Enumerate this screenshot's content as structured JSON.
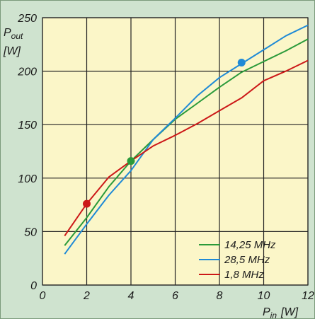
{
  "chart_data": {
    "type": "line",
    "ylabel": {
      "base": "P",
      "sub": "out",
      "unit": "[W]"
    },
    "xlabel": {
      "base": "P",
      "sub": "in",
      "unit": "[W]"
    },
    "xlim": [
      0,
      12
    ],
    "ylim": [
      0,
      250
    ],
    "xticks": [
      0,
      2,
      4,
      6,
      8,
      10,
      12
    ],
    "yticks": [
      0,
      50,
      100,
      150,
      200,
      250
    ],
    "xgrid": [
      0,
      2,
      4,
      6,
      8,
      10,
      12
    ],
    "ygrid": [
      0,
      50,
      100,
      150,
      200,
      250
    ],
    "grid": true,
    "legend_position": "bottom-right",
    "background": "#fbf6c8",
    "series": [
      {
        "name": "14,25 MHz",
        "color": "#2a9a3a",
        "x": [
          1,
          2,
          3,
          4,
          5,
          6,
          7,
          8,
          9,
          10,
          11,
          12
        ],
        "y": [
          37,
          63,
          92,
          116,
          136,
          155,
          170,
          185,
          199,
          209,
          219,
          230
        ],
        "marker": {
          "x": 4,
          "y": 116
        }
      },
      {
        "name": "28,5 MHz",
        "color": "#1f8ad6",
        "x": [
          1,
          2,
          3,
          4,
          5,
          6,
          7,
          8,
          9,
          10,
          11,
          12
        ],
        "y": [
          29,
          57,
          84,
          107,
          136,
          156,
          177,
          194,
          207,
          220,
          233,
          243
        ],
        "marker": {
          "x": 9,
          "y": 208
        }
      },
      {
        "name": "1,8 MHz",
        "color": "#cc1818",
        "x": [
          1,
          2,
          3,
          4,
          5,
          6,
          7,
          8,
          9,
          10,
          11,
          12
        ],
        "y": [
          46,
          76,
          101,
          116,
          130,
          140,
          151,
          163,
          175,
          191,
          200,
          210
        ],
        "marker": {
          "x": 2,
          "y": 76
        }
      }
    ]
  }
}
